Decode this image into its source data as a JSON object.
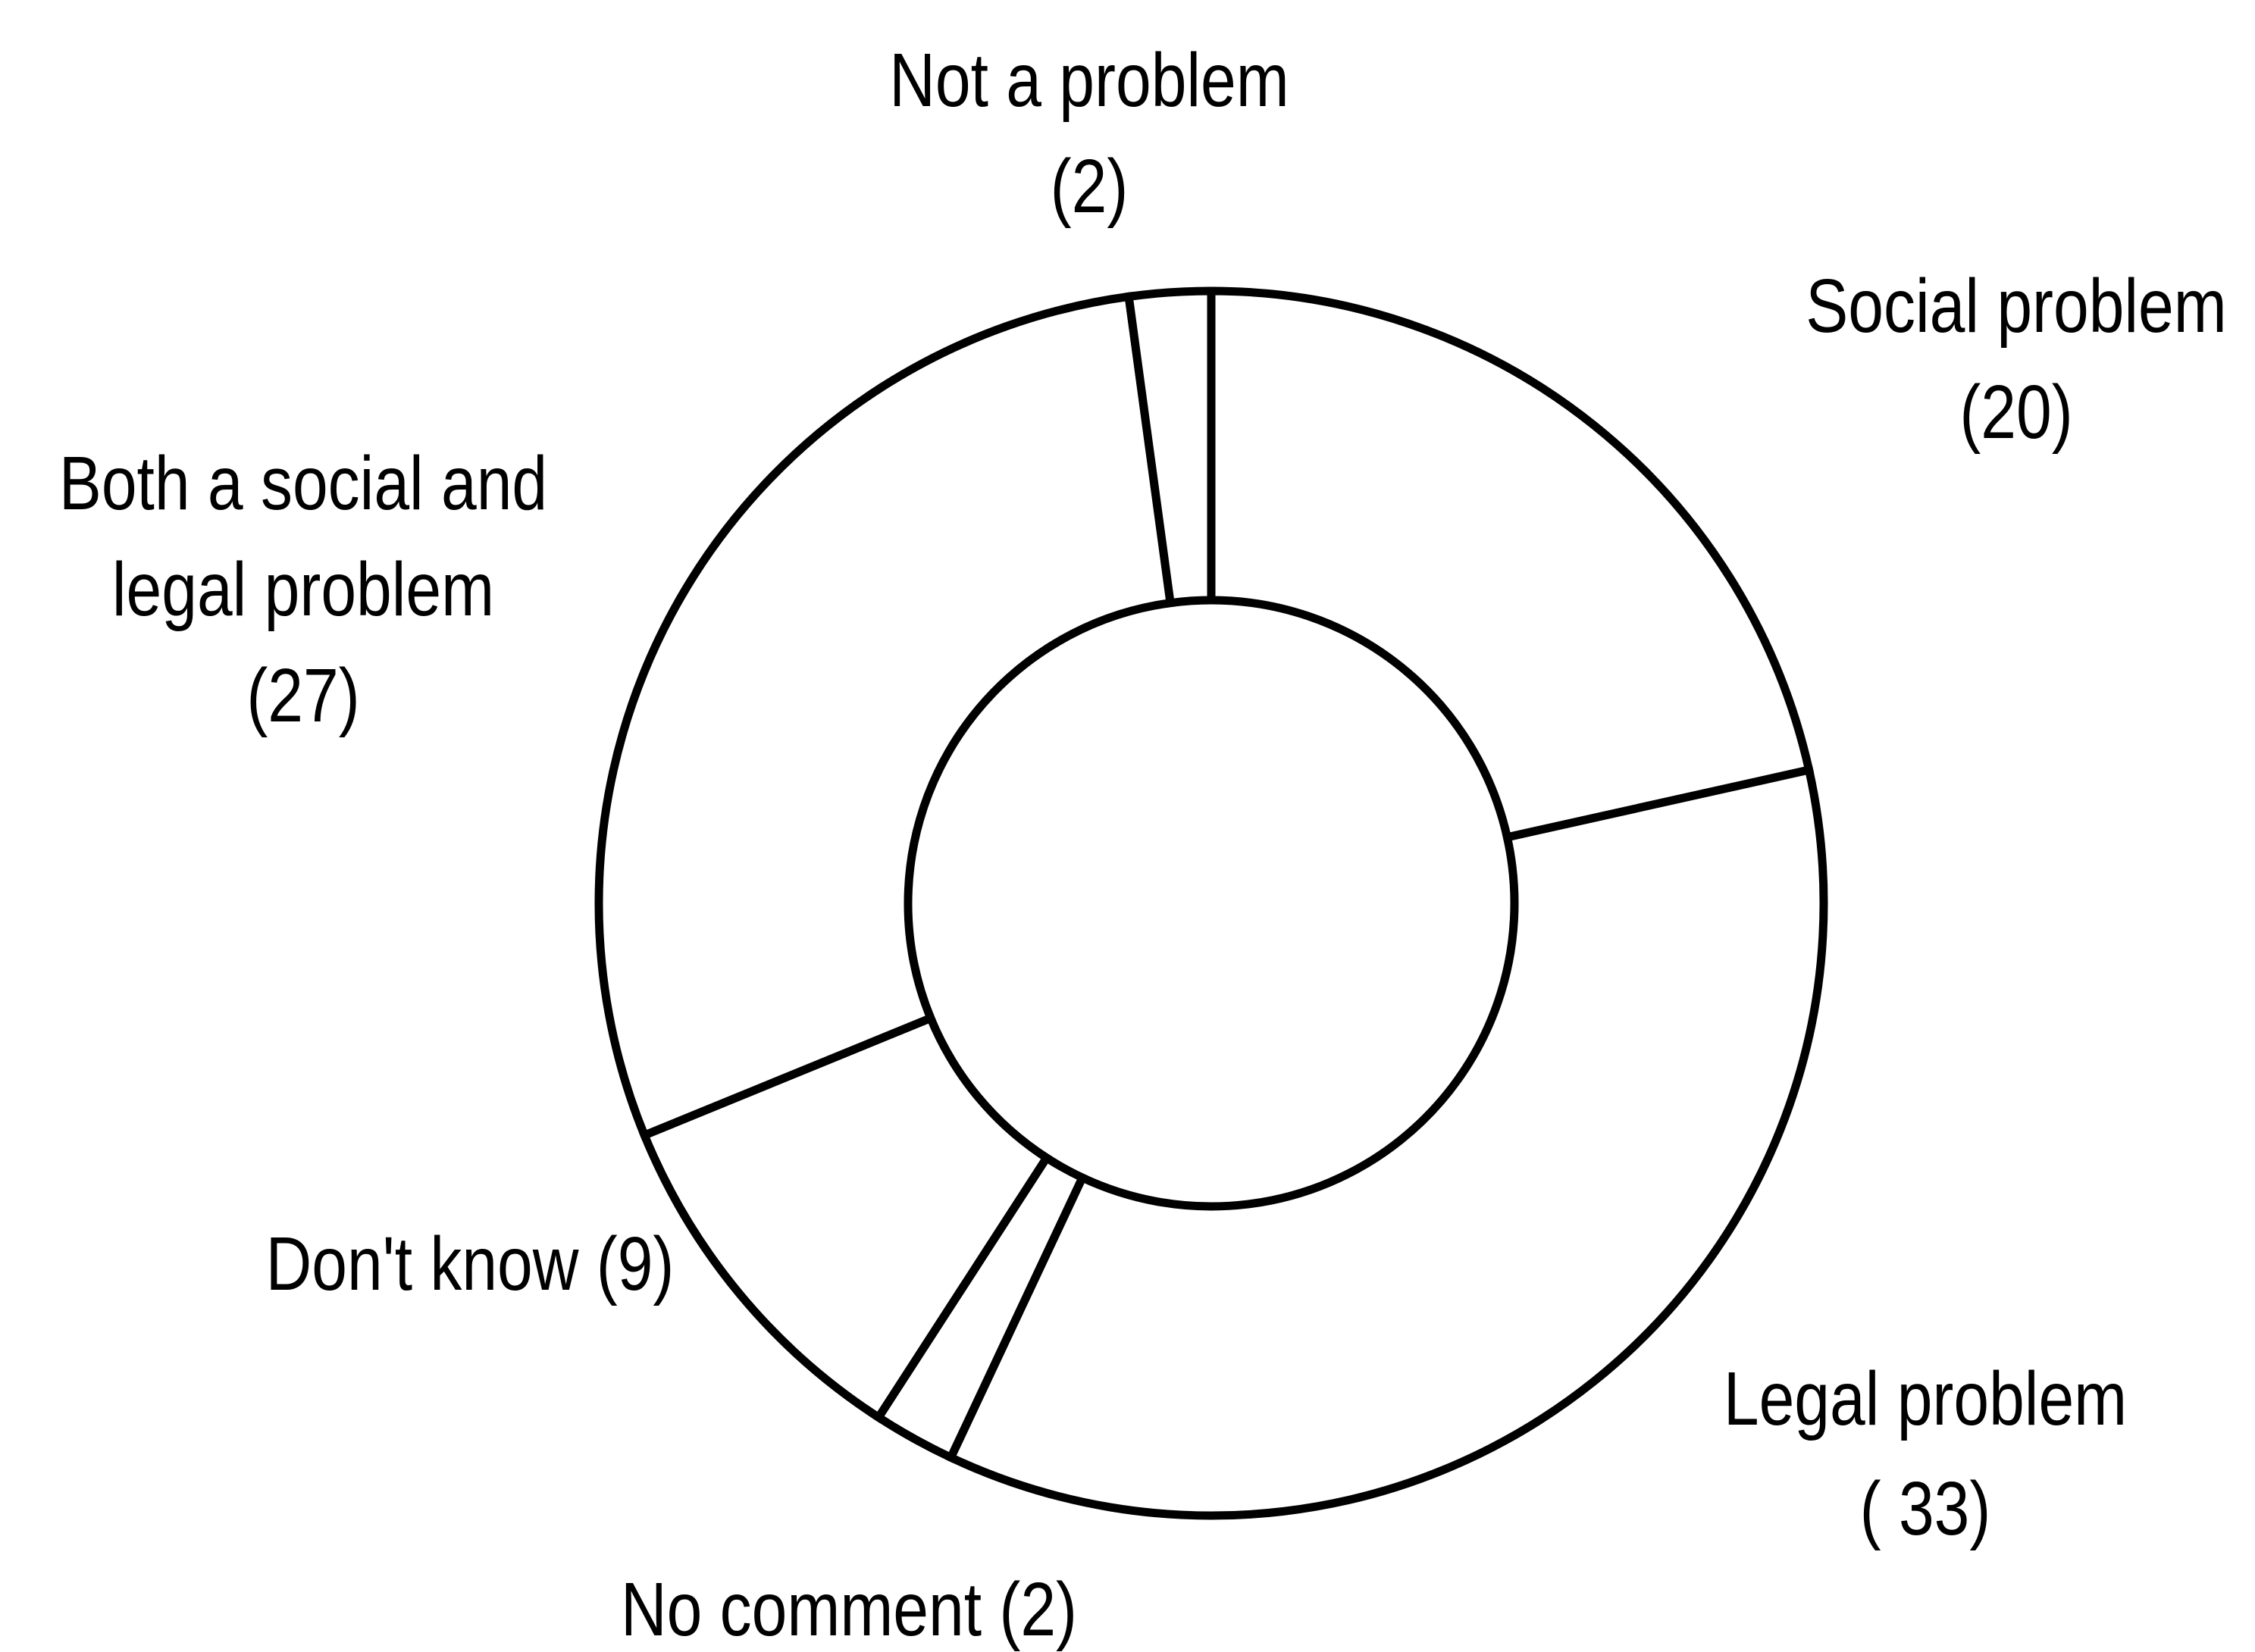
{
  "chart_data": {
    "type": "donut",
    "title": "",
    "slices": [
      {
        "id": "social",
        "name": "Social problem",
        "value": 20,
        "label_lines": [
          "Social problem",
          "(20)"
        ]
      },
      {
        "id": "legal",
        "name": "Legal problem",
        "value": 33,
        "label_lines": [
          "Legal problem",
          "( 33)"
        ]
      },
      {
        "id": "no-comment",
        "name": "No comment",
        "value": 2,
        "label_lines": [
          "No comment  (2)"
        ]
      },
      {
        "id": "dont-know",
        "name": "Don't know",
        "value": 9,
        "label_lines": [
          "Don't know (9)"
        ]
      },
      {
        "id": "both",
        "name": "Both a social and legal problem",
        "value": 27,
        "label_lines": [
          "Both a social and",
          "legal problem",
          "(27)"
        ]
      },
      {
        "id": "not-a-problem",
        "name": "Not a problem",
        "value": 2,
        "label_lines": [
          "Not a problem",
          "(2)"
        ]
      }
    ],
    "legend": "none",
    "colors": {
      "fill": "#ffffff",
      "stroke": "#000000"
    }
  }
}
